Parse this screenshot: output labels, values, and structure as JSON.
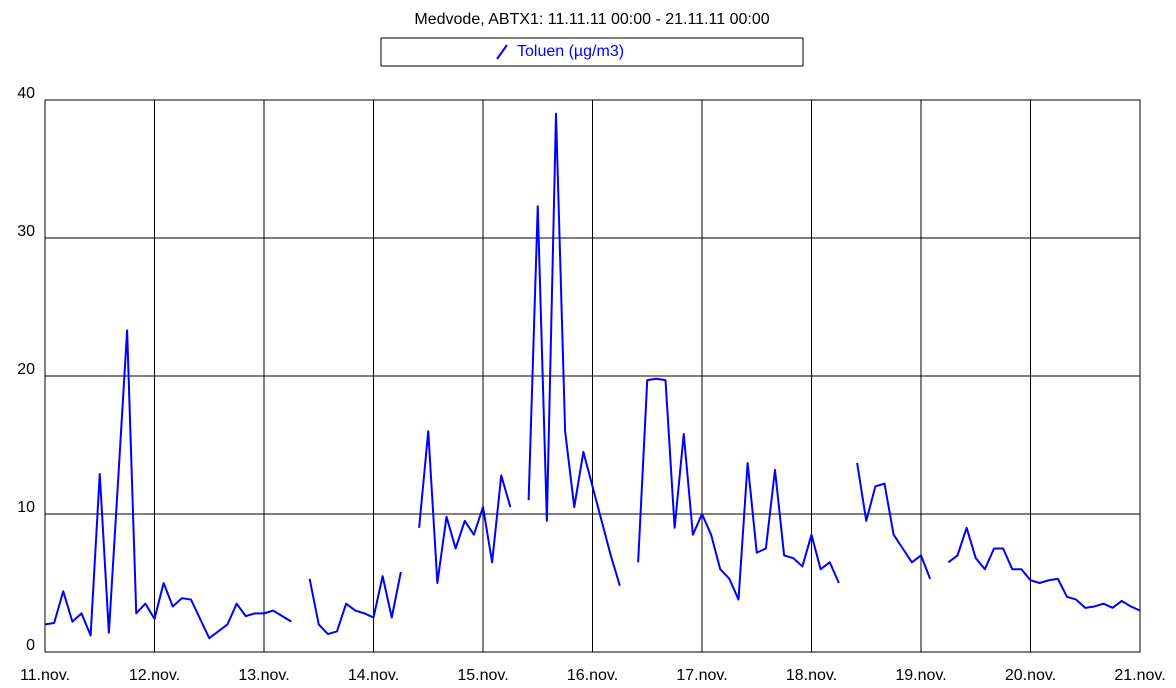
{
  "chart_data": {
    "type": "line",
    "title": "Medvode, ABTX1: 11.11.11 00:00 - 21.11.11 00:00",
    "x": [
      0,
      2,
      4,
      6,
      8,
      10,
      12,
      14,
      16,
      18,
      20,
      22,
      24,
      26,
      28,
      30,
      32,
      34,
      36,
      38,
      40,
      42,
      44,
      46,
      48,
      50,
      52,
      54,
      56,
      58,
      60,
      62,
      64,
      66,
      68,
      70,
      72,
      74,
      76,
      78,
      80,
      82,
      84,
      86,
      88,
      90,
      92,
      94,
      96,
      98,
      100,
      102,
      104,
      106,
      108,
      110,
      112,
      114,
      116,
      118,
      120,
      122,
      124,
      126,
      128,
      130,
      132,
      134,
      136,
      138,
      140,
      142,
      144,
      146,
      148,
      150,
      152,
      154,
      156,
      158,
      160,
      162,
      164,
      166,
      168,
      170,
      172,
      174,
      176,
      178,
      180,
      182,
      184,
      186,
      188,
      190,
      192,
      194,
      196,
      198,
      200,
      202,
      204,
      206,
      208,
      210,
      212,
      214,
      216,
      218,
      220,
      222,
      224,
      226,
      228,
      230,
      232,
      234,
      236,
      238,
      240
    ],
    "series": [
      {
        "name": "Toluen (µg/m3)",
        "color": "#0000ff",
        "values": [
          2.0,
          2.1,
          4.4,
          2.2,
          2.8,
          1.2,
          12.9,
          1.4,
          12.3,
          23.3,
          2.8,
          3.5,
          2.4,
          5.0,
          3.3,
          3.9,
          3.8,
          2.4,
          1.0,
          1.5,
          2.0,
          3.5,
          2.6,
          2.8,
          2.8,
          3.0,
          2.6,
          2.2,
          null,
          5.3,
          2.0,
          1.3,
          1.5,
          3.5,
          3.0,
          2.8,
          2.5,
          5.5,
          2.5,
          5.8,
          null,
          9,
          16,
          5,
          9.8,
          7.5,
          9.5,
          8.5,
          10.5,
          6.5,
          12.8,
          10.5,
          null,
          11,
          32.3,
          9.5,
          39,
          16,
          10.5,
          14.5,
          12,
          9.5,
          7,
          4.8,
          null,
          6.5,
          19.7,
          19.8,
          19.7,
          9,
          15.8,
          8.5,
          10,
          8.5,
          6,
          5.3,
          3.8,
          13.7,
          7.2,
          7.5,
          13.2,
          7,
          6.8,
          6.2,
          8.5,
          6,
          6.5,
          5.0,
          null,
          13.7,
          9.5,
          12,
          12.2,
          8.5,
          7.5,
          6.5,
          7,
          5.3,
          null,
          6.5,
          7,
          9,
          6.8,
          6.0,
          7.5,
          7.5,
          6.0,
          6.0,
          5.2,
          5.0,
          5.2,
          5.3,
          4.0,
          3.8,
          3.2,
          3.3,
          3.5,
          3.2,
          3.7,
          3.3,
          3.0
        ]
      }
    ],
    "xlim": [
      0,
      240
    ],
    "xticks": [
      {
        "value": 0,
        "label": "11.nov."
      },
      {
        "value": 24,
        "label": "12.nov."
      },
      {
        "value": 48,
        "label": "13.nov."
      },
      {
        "value": 72,
        "label": "14.nov."
      },
      {
        "value": 96,
        "label": "15.nov."
      },
      {
        "value": 120,
        "label": "16.nov."
      },
      {
        "value": 144,
        "label": "17.nov."
      },
      {
        "value": 168,
        "label": "18.nov."
      },
      {
        "value": 192,
        "label": "19.nov."
      },
      {
        "value": 216,
        "label": "20.nov."
      },
      {
        "value": 240,
        "label": "21.nov."
      }
    ],
    "ylim": [
      0,
      40
    ],
    "yticks": [
      0,
      10,
      20,
      30,
      40
    ],
    "grid": true
  }
}
